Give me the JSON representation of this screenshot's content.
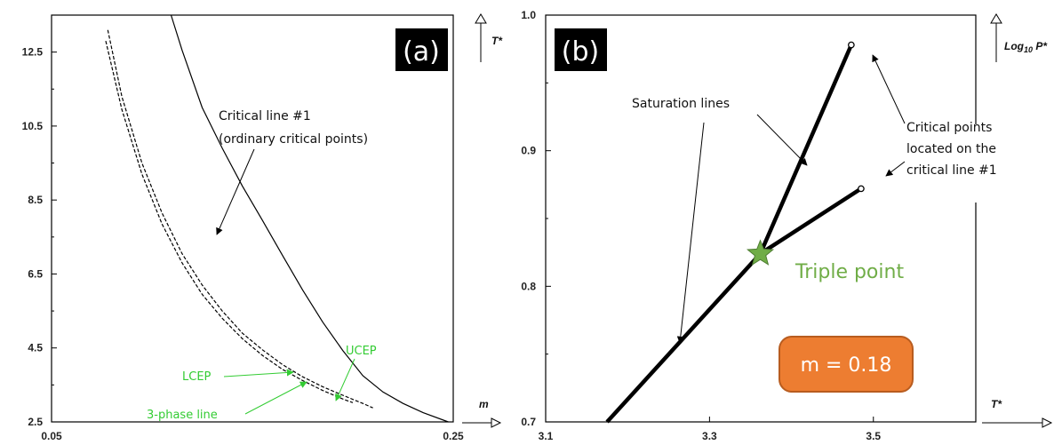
{
  "colors": {
    "curve": "#000000",
    "annotation_green": "#33cc33",
    "triple_point": "#70ad47",
    "m_box_fill": "#ed7d31",
    "m_box_stroke": "#b85c1f",
    "badge_bg": "#000000"
  },
  "chart_data": [
    {
      "type": "line",
      "panel_label": "(a)",
      "xlabel": "m",
      "ylabel": "T*",
      "x_ticks": [
        "0.05",
        "0.25"
      ],
      "y_ticks": [
        "12.5",
        "10.5",
        "8.5",
        "6.5",
        "4.5",
        "2.5"
      ],
      "xlim": [
        0.05,
        0.25
      ],
      "ylim": [
        2.5,
        13.5
      ],
      "grid": false,
      "series": [
        {
          "style": "solid",
          "x": [
            0.1095,
            0.115,
            0.125,
            0.135,
            0.145,
            0.155,
            0.165,
            0.175,
            0.185,
            0.195,
            0.205,
            0.215,
            0.225,
            0.235,
            0.2475
          ],
          "y": [
            13.5,
            12.55,
            11.0,
            9.9,
            8.88,
            7.95,
            7.0,
            6.07,
            5.2,
            4.43,
            3.75,
            3.31,
            3.0,
            2.75,
            2.5
          ]
        },
        {
          "style": "dashed",
          "x": [
            0.078,
            0.085,
            0.095,
            0.105,
            0.115,
            0.125,
            0.135,
            0.145,
            0.155,
            0.165,
            0.175,
            0.185,
            0.195,
            0.205,
            0.21
          ],
          "y": [
            13.1,
            11.3,
            9.5,
            8.15,
            7.05,
            6.2,
            5.5,
            4.9,
            4.45,
            4.05,
            3.72,
            3.45,
            3.22,
            3.0,
            2.88
          ]
        },
        {
          "style": "dashed",
          "x": [
            0.077,
            0.085,
            0.095,
            0.105,
            0.115,
            0.125,
            0.135,
            0.145,
            0.155,
            0.165,
            0.175,
            0.185,
            0.195,
            0.2
          ],
          "y": [
            12.8,
            10.95,
            9.2,
            7.85,
            6.8,
            5.95,
            5.3,
            4.75,
            4.3,
            3.92,
            3.62,
            3.35,
            3.12,
            3.02
          ]
        }
      ],
      "annotations": {
        "critical_line_1": "Critical line #1",
        "critical_line_2": "(ordinary critical points)",
        "lcep": "LCEP",
        "ucep": "UCEP",
        "three_phase": "3-phase line"
      }
    },
    {
      "type": "line",
      "panel_label": "(b)",
      "xlabel": "T*",
      "ylabel_main": "Log",
      "ylabel_sub": "10",
      "ylabel_tail": " P*",
      "x_ticks": [
        "3.1",
        "3.3",
        "3.5"
      ],
      "y_ticks": [
        "1.0",
        "0.9",
        "0.8",
        "0.7"
      ],
      "xlim": [
        3.1,
        3.625
      ],
      "ylim": [
        0.7,
        1.0
      ],
      "grid": false,
      "series": [
        {
          "x": [
            3.175,
            3.362,
            3.473
          ],
          "y": [
            0.7,
            0.824,
            0.978
          ]
        },
        {
          "x": [
            3.362,
            3.485
          ],
          "y": [
            0.824,
            0.872
          ]
        }
      ],
      "critical_points": [
        {
          "x": 3.473,
          "y": 0.978
        },
        {
          "x": 3.485,
          "y": 0.872
        }
      ],
      "triple_point": {
        "x": 3.362,
        "y": 0.824,
        "label": "Triple point"
      },
      "m_box": "m = 0.18",
      "annotations": {
        "saturation": "Saturation lines",
        "crit_1": "Critical points",
        "crit_2": "located on the",
        "crit_3": "critical line #1"
      }
    }
  ]
}
